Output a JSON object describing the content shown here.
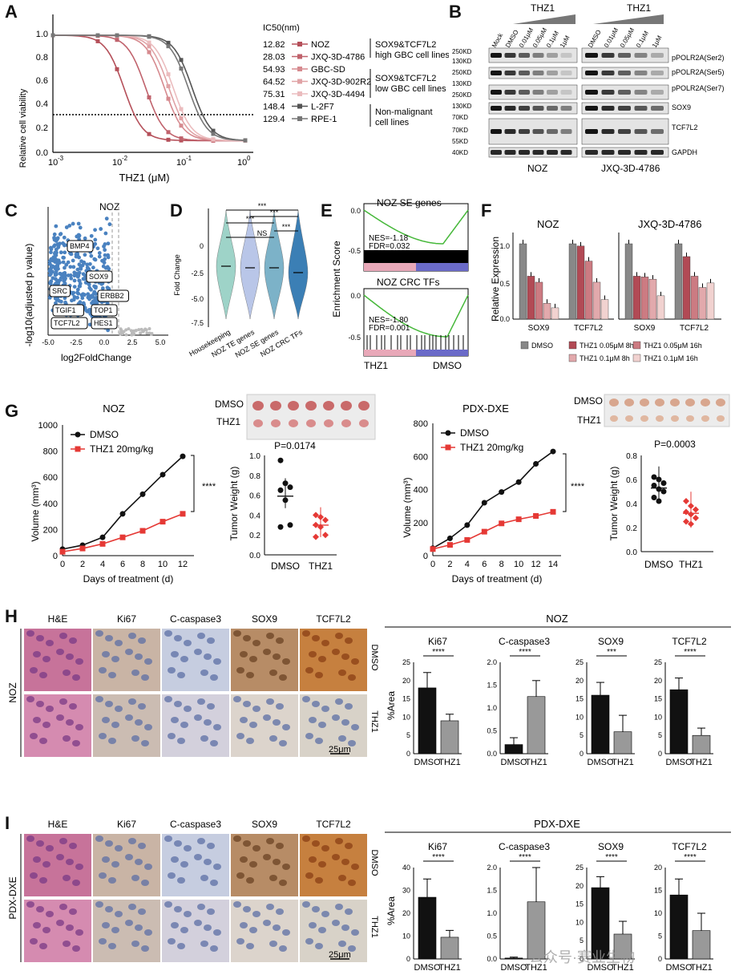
{
  "panels": {
    "A": "A",
    "B": "B",
    "C": "C",
    "D": "D",
    "E": "E",
    "F": "F",
    "G": "G",
    "H": "H",
    "I": "I"
  },
  "panelA": {
    "ylabel": "Relative cell viability",
    "xlabel": "THZ1 (μM)",
    "xticks": [
      "10",
      "-3",
      "10",
      "-2",
      "10",
      "-1",
      "10",
      "0"
    ],
    "yticks": [
      "0.0",
      "0.2",
      "0.4",
      "0.6",
      "0.8",
      "1.0"
    ],
    "legend_title": "IC50(nm)",
    "lines": [
      {
        "ic50": "12.82",
        "name": "NOZ",
        "color": "#b5505a"
      },
      {
        "ic50": "28.03",
        "name": "JXQ-3D-4786",
        "color": "#c0626c"
      },
      {
        "ic50": "54.93",
        "name": "GBC-SD",
        "color": "#d68a8f"
      },
      {
        "ic50": "64.52",
        "name": "JXQ-3D-902R2",
        "color": "#e0a3a6"
      },
      {
        "ic50": "75.31",
        "name": "JXQ-3D-4494",
        "color": "#ebbcbe"
      },
      {
        "ic50": "148.4",
        "name": "L-2F7",
        "color": "#555555"
      },
      {
        "ic50": "129.4",
        "name": "RPE-1",
        "color": "#777777"
      }
    ],
    "groups": [
      {
        "l1": "SOX9&TCF7L2",
        "l2": "high GBC cell lines"
      },
      {
        "l1": "SOX9&TCF7L2",
        "l2": "low GBC cell lines"
      },
      {
        "l1": "Non-malignant",
        "l2": "cell lines"
      }
    ]
  },
  "panelB": {
    "title1": "THZ1",
    "title2": "THZ1",
    "lanes_left": [
      "Mock",
      "DMSO",
      "0.01μM",
      "0.05μM",
      "0.1μM",
      "1μM"
    ],
    "lanes_right": [
      "DMSO",
      "0.01μM",
      "0.05μM",
      "0.1μM",
      "1μM"
    ],
    "kd": [
      "250KD",
      "130KD",
      "250KD",
      "130KD",
      "250KD",
      "130KD",
      "70KD",
      "70KD",
      "55KD",
      "40KD"
    ],
    "proteins": [
      "pPOLR2A(Ser2)",
      "pPOLR2A(Ser5)",
      "pPOLR2A(Ser7)",
      "SOX9",
      "TCF7L2",
      "GAPDH"
    ],
    "cell1": "NOZ",
    "cell2": "JXQ-3D-4786"
  },
  "panelC": {
    "title": "NOZ",
    "ylabel": "-log10(adjusted p value)",
    "xlabel": "log2FoldChange",
    "xticks": [
      "-5.0",
      "-2.5",
      "0.0",
      "2.5",
      "5.0"
    ],
    "genes": [
      "BMP4",
      "SOX9",
      "SRC",
      "ERBB2",
      "TGIF1",
      "TOP1",
      "TCF7L2",
      "HES1"
    ]
  },
  "panelD": {
    "ylabel": "Fold Change",
    "yticks": [
      "0",
      "-2.5",
      "-5.0",
      "-7.5"
    ],
    "cats": [
      "Housekeeping",
      "NOZ TE genes",
      "NOZ SE genes",
      "NOZ CRC TFs"
    ],
    "sig": [
      "***",
      "***",
      "***",
      "NS",
      "***"
    ]
  },
  "panelE": {
    "ylabel": "Enrichment Score",
    "top_title": "NOZ SE genes",
    "top_nes": "NES=-1.18",
    "top_fdr": "FDR=0.032",
    "bot_title": "NOZ CRC TFs",
    "bot_nes": "NES=-1.80",
    "bot_fdr": "FDR=0.001",
    "yt_top": [
      "0.0",
      "-0.5"
    ],
    "yt_bot": [
      "0.0",
      "-0.5"
    ],
    "left": "THZ1",
    "right": "DMSO"
  },
  "panelF": {
    "ylabel": "Relative Expression",
    "title1": "NOZ",
    "title2": "JXQ-3D-4786",
    "yticks": [
      "0.0",
      "0.5",
      "1.0"
    ],
    "groups": [
      "SOX9",
      "TCF7L2",
      "SOX9",
      "TCF7L2"
    ],
    "chart_data": {
      "type": "bar",
      "series": [
        {
          "name": "DMSO",
          "values": [
            1.0,
            1.0,
            1.0,
            1.0
          ],
          "color": "#888888"
        },
        {
          "name": "THZ1 0.05μM 8h",
          "values": [
            0.57,
            0.97,
            0.57,
            0.83
          ],
          "color": "#b24a55"
        },
        {
          "name": "THZ1 0.05μM 16h",
          "values": [
            0.49,
            0.77,
            0.56,
            0.57
          ],
          "color": "#cc7b82"
        },
        {
          "name": "THZ1 0.1μM 8h",
          "values": [
            0.21,
            0.49,
            0.53,
            0.42
          ],
          "color": "#e2a9ac"
        },
        {
          "name": "THZ1 0.1μM 16h",
          "values": [
            0.15,
            0.26,
            0.31,
            0.48
          ],
          "color": "#f1d2d0"
        }
      ],
      "ylim": [
        0,
        1.2
      ]
    }
  },
  "panelG": {
    "title1": "NOZ",
    "title2": "PDX-DXE",
    "ylabel": "Volume (mm³)",
    "xlabel": "Days of treatment (d)",
    "leg_dmso": "DMSO",
    "leg_thz": "THZ1 20mg/kg",
    "sig": "****",
    "photo_dmso": "DMSO",
    "photo_thz": "THZ1",
    "p1": "P=0.0174",
    "p2": "P=0.0003",
    "wlabel": "Tumor Weight (g)",
    "wcats": [
      "DMSO",
      "THZ1"
    ],
    "wcats2": [
      "DMSO",
      "THZ1"
    ],
    "yt1": [
      "0",
      "200",
      "400",
      "600",
      "800",
      "1000"
    ],
    "yt2": [
      "0",
      "200",
      "400",
      "600",
      "800"
    ],
    "xt1": [
      "0",
      "2",
      "4",
      "6",
      "8",
      "10",
      "12"
    ],
    "xt2": [
      "0",
      "2",
      "4",
      "6",
      "8",
      "10",
      "12",
      "14"
    ],
    "wyt1": [
      "0.0",
      "0.2",
      "0.4",
      "0.6",
      "0.8",
      "1.0"
    ],
    "wyt2": [
      "0.0",
      "0.2",
      "0.4",
      "0.6",
      "0.8"
    ],
    "chart_data": [
      {
        "type": "line",
        "x": [
          0,
          2,
          4,
          6,
          8,
          10,
          12
        ],
        "series": [
          {
            "name": "DMSO",
            "values": [
              50,
              80,
              140,
              320,
              470,
              620,
              760
            ]
          },
          {
            "name": "THZ1 20mg/kg",
            "values": [
              30,
              55,
              90,
              140,
              190,
              260,
              320
            ]
          }
        ],
        "ylim": [
          0,
          1000
        ]
      },
      {
        "type": "line",
        "x": [
          0,
          2,
          4,
          6,
          8,
          10,
          12,
          14
        ],
        "series": [
          {
            "name": "DMSO",
            "values": [
              45,
              105,
              185,
              320,
              385,
              445,
              555,
              630
            ]
          },
          {
            "name": "THZ1 20mg/kg",
            "values": [
              40,
              65,
              95,
              145,
              195,
              220,
              240,
              265
            ]
          }
        ],
        "ylim": [
          0,
          800
        ]
      },
      {
        "type": "scatter",
        "categories": [
          "DMSO",
          "THZ1"
        ],
        "values": [
          [
            0.95,
            0.72,
            0.68,
            0.65,
            0.55,
            0.3,
            0.28
          ],
          [
            0.4,
            0.38,
            0.35,
            0.3,
            0.28,
            0.2,
            0.18
          ]
        ],
        "ylim": [
          0,
          1.0
        ]
      },
      {
        "type": "scatter",
        "categories": [
          "DMSO",
          "THZ1"
        ],
        "values": [
          [
            0.62,
            0.6,
            0.57,
            0.55,
            0.52,
            0.5,
            0.45,
            0.42
          ],
          [
            0.42,
            0.38,
            0.35,
            0.33,
            0.31,
            0.28,
            0.25,
            0.23
          ]
        ],
        "ylim": [
          0,
          0.8
        ]
      }
    ]
  },
  "panelH": {
    "title": "NOZ",
    "row": "NOZ",
    "cols": [
      "H&E",
      "Ki67",
      "C-caspase3",
      "SOX9",
      "TCF7L2"
    ],
    "rlabels": [
      "DMSO",
      "THZ1"
    ],
    "scale": "25μm",
    "ylabel": "%Area",
    "sig": [
      "****",
      "****",
      "***",
      "****"
    ],
    "xc": [
      "DMSO",
      "THZ1"
    ],
    "chart_data": [
      {
        "type": "bar",
        "title": "Ki67",
        "categories": [
          "DMSO",
          "THZ1"
        ],
        "values": [
          18,
          9
        ],
        "err": [
          4.2,
          1.8
        ],
        "ylim": [
          0,
          25
        ],
        "yticks": [
          "0",
          "5",
          "10",
          "15",
          "20",
          "25"
        ]
      },
      {
        "type": "bar",
        "title": "C-caspase3",
        "categories": [
          "DMSO",
          "THZ1"
        ],
        "values": [
          0.2,
          1.25
        ],
        "err": [
          0.15,
          0.35
        ],
        "ylim": [
          0,
          2.0
        ],
        "yticks": [
          "0.0",
          "0.5",
          "1.0",
          "1.5",
          "2.0"
        ]
      },
      {
        "type": "bar",
        "title": "SOX9",
        "categories": [
          "DMSO",
          "THZ1"
        ],
        "values": [
          16,
          6
        ],
        "err": [
          3.5,
          4.5
        ],
        "ylim": [
          0,
          25
        ],
        "yticks": [
          "0",
          "5",
          "10",
          "15",
          "20",
          "25"
        ]
      },
      {
        "type": "bar",
        "title": "TCF7L2",
        "categories": [
          "DMSO",
          "THZ1"
        ],
        "values": [
          17.5,
          5
        ],
        "err": [
          3.2,
          2.0
        ],
        "ylim": [
          0,
          25
        ],
        "yticks": [
          "0",
          "5",
          "10",
          "15",
          "20",
          "25"
        ]
      }
    ]
  },
  "panelI": {
    "title": "PDX-DXE",
    "row": "PDX-DXE",
    "cols": [
      "H&E",
      "Ki67",
      "C-caspase3",
      "SOX9",
      "TCF7L2"
    ],
    "rlabels": [
      "DMSO",
      "THZ1"
    ],
    "scale": "25μm",
    "ylabel": "%Area",
    "sig": [
      "****",
      "****",
      "****",
      "****"
    ],
    "xc": [
      "DMSO",
      "THZ1"
    ],
    "chart_data": [
      {
        "type": "bar",
        "title": "Ki67",
        "categories": [
          "DMSO",
          "THZ1"
        ],
        "values": [
          27,
          9.5
        ],
        "err": [
          8,
          3
        ],
        "ylim": [
          0,
          40
        ],
        "yticks": [
          "0",
          "10",
          "20",
          "30",
          "40"
        ]
      },
      {
        "type": "bar",
        "title": "C-caspase3",
        "categories": [
          "DMSO",
          "THZ1"
        ],
        "values": [
          0.02,
          1.25
        ],
        "err": [
          0.02,
          0.75
        ],
        "ylim": [
          0,
          2.0
        ],
        "yticks": [
          "0.0",
          "0.5",
          "1.0",
          "1.5",
          "2.0"
        ]
      },
      {
        "type": "bar",
        "title": "SOX9",
        "categories": [
          "DMSO",
          "THZ1"
        ],
        "values": [
          19.5,
          6.8
        ],
        "err": [
          3,
          3.5
        ],
        "ylim": [
          0,
          25
        ],
        "yticks": [
          "0",
          "5",
          "10",
          "15",
          "20",
          "25"
        ]
      },
      {
        "type": "bar",
        "title": "TCF7L2",
        "categories": [
          "DMSO",
          "THZ1"
        ],
        "values": [
          14,
          6.2
        ],
        "err": [
          3.5,
          3.8
        ],
        "ylim": [
          0,
          20
        ],
        "yticks": [
          "0",
          "5",
          "10",
          "15",
          "20"
        ]
      }
    ]
  },
  "watermark": "公众号·赛业生物",
  "colors": {
    "red": "#e53935",
    "black": "#111111",
    "blue": "#3a78b8",
    "gsea": "#46b83a"
  }
}
